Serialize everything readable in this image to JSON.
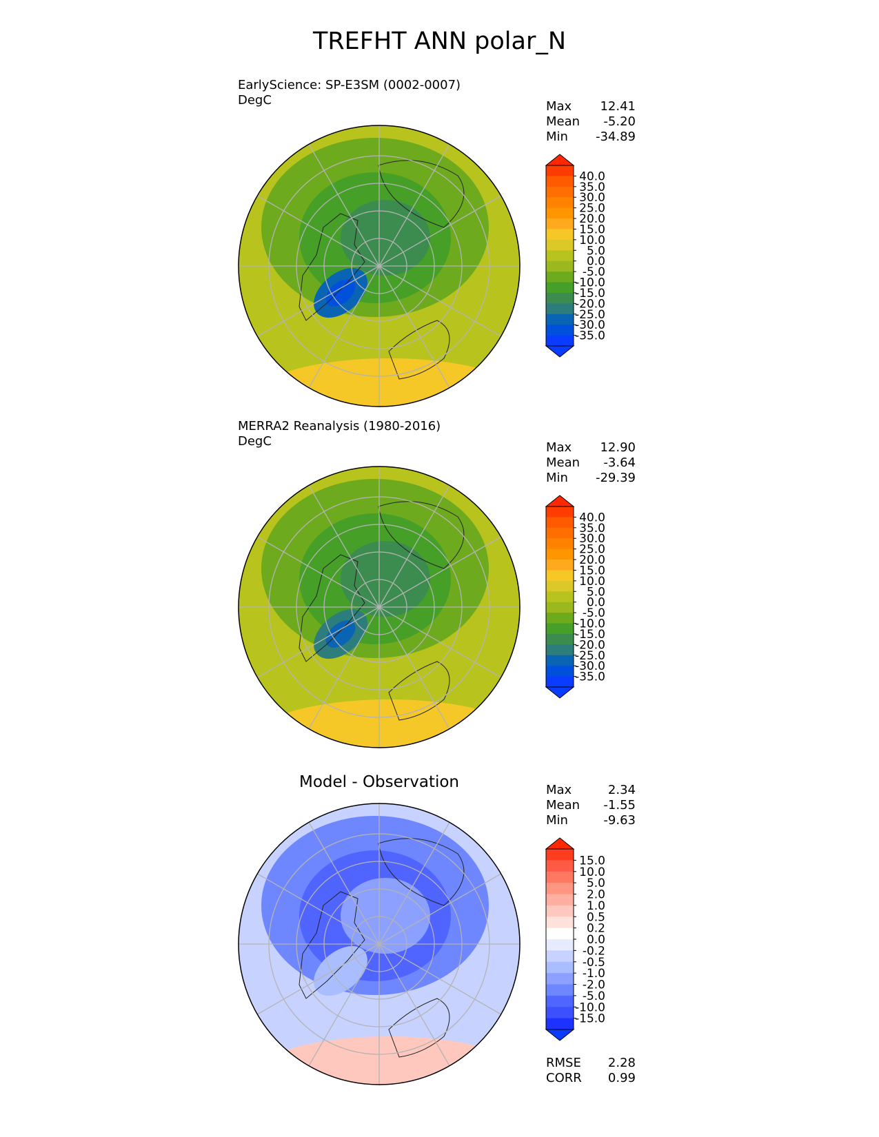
{
  "page_title": "TREFHT ANN polar_N",
  "panels": [
    {
      "subtitle_line1": "EarlyScience: SP-E3SM (0002-0007)",
      "subtitle_line2": "DegC",
      "stats": {
        "max_label": "Max",
        "max": "12.41",
        "mean_label": "Mean",
        "mean": "-5.20",
        "min_label": "Min",
        "min": "-34.89"
      },
      "colorbar": {
        "ticks": [
          "40.0",
          "35.0",
          "30.0",
          "25.0",
          "20.0",
          "15.0",
          "10.0",
          "5.0",
          "0.0",
          "-5.0",
          "-10.0",
          "-15.0",
          "-20.0",
          "-25.0",
          "-30.0",
          "-35.0"
        ],
        "colors": [
          "#ff3c00",
          "#ff5a00",
          "#ff6e00",
          "#ff8200",
          "#ff9600",
          "#ffaa1e",
          "#f5c828",
          "#dcc828",
          "#b9c31e",
          "#9bb91e",
          "#6eaa1e",
          "#46a028",
          "#3c8c50",
          "#2d7d7d",
          "#0a64b4",
          "#0050dc",
          "#0a3cff"
        ],
        "top_color": "#ff2800",
        "bottom_color": "#0a3cff"
      },
      "map": {
        "ocean_color": "#b9c31e",
        "cold_colors": [
          "#6eaa1e",
          "#46a028",
          "#3c8c50",
          "#0a64b4",
          "#0050dc"
        ],
        "warm_color": "#f5c828"
      }
    },
    {
      "subtitle_line1": "MERRA2 Reanalysis (1980-2016)",
      "subtitle_line2": "DegC",
      "stats": {
        "max_label": "Max",
        "max": "12.90",
        "mean_label": "Mean",
        "mean": "-3.64",
        "min_label": "Min",
        "min": "-29.39"
      },
      "colorbar": {
        "ticks": [
          "40.0",
          "35.0",
          "30.0",
          "25.0",
          "20.0",
          "15.0",
          "10.0",
          "5.0",
          "0.0",
          "-5.0",
          "-10.0",
          "-15.0",
          "-20.0",
          "-25.0",
          "-30.0",
          "-35.0"
        ],
        "colors": [
          "#ff3c00",
          "#ff5a00",
          "#ff6e00",
          "#ff8200",
          "#ff9600",
          "#ffaa1e",
          "#f5c828",
          "#dcc828",
          "#b9c31e",
          "#9bb91e",
          "#6eaa1e",
          "#46a028",
          "#3c8c50",
          "#2d7d7d",
          "#0a64b4",
          "#0050dc",
          "#0a3cff"
        ],
        "top_color": "#ff2800",
        "bottom_color": "#0a3cff"
      },
      "map": {
        "ocean_color": "#b9c31e",
        "cold_colors": [
          "#6eaa1e",
          "#46a028",
          "#3c8c50",
          "#2d7d7d",
          "#0a64b4"
        ],
        "warm_color": "#f5c828"
      }
    },
    {
      "center_title": "Model - Observation",
      "stats": {
        "max_label": "Max",
        "max": "2.34",
        "mean_label": "Mean",
        "mean": "-1.55",
        "min_label": "Min",
        "min": "-9.63"
      },
      "colorbar": {
        "ticks": [
          "15.0",
          "10.0",
          "5.0",
          "2.0",
          "1.0",
          "0.5",
          "0.2",
          "0.0",
          "-0.2",
          "-0.5",
          "-1.0",
          "-2.0",
          "-5.0",
          "-10.0",
          "-15.0"
        ],
        "colors": [
          "#ff3c1e",
          "#ff5a46",
          "#ff785f",
          "#ff9682",
          "#ffafa0",
          "#ffc8be",
          "#ffe1dc",
          "#ffffff",
          "#e6ebff",
          "#c8d2ff",
          "#aabeff",
          "#8ca0ff",
          "#6e87ff",
          "#5064ff",
          "#3c50ff",
          "#1e32ff"
        ],
        "top_color": "#ff2800",
        "bottom_color": "#0a3cff"
      },
      "map": {
        "ocean_color": "#c8d2ff",
        "cold_colors": [
          "#6e87ff",
          "#5064ff",
          "#8ca0ff",
          "#aabeff"
        ],
        "warm_color": "#ffc8be"
      },
      "footer": {
        "rmse_label": "RMSE",
        "rmse": "2.28",
        "corr_label": "CORR",
        "corr": "0.99"
      }
    }
  ],
  "chart_data": [
    {
      "type": "heatmap",
      "projection": "north polar stereographic",
      "title": "EarlyScience: SP-E3SM (0002-0007)",
      "units": "DegC",
      "colorbar_levels": [
        -35,
        -30,
        -25,
        -20,
        -15,
        -10,
        -5,
        0,
        5,
        10,
        15,
        20,
        25,
        30,
        35,
        40
      ],
      "summary": {
        "max": 12.41,
        "mean": -5.2,
        "min": -34.89
      }
    },
    {
      "type": "heatmap",
      "projection": "north polar stereographic",
      "title": "MERRA2 Reanalysis (1980-2016)",
      "units": "DegC",
      "colorbar_levels": [
        -35,
        -30,
        -25,
        -20,
        -15,
        -10,
        -5,
        0,
        5,
        10,
        15,
        20,
        25,
        30,
        35,
        40
      ],
      "summary": {
        "max": 12.9,
        "mean": -3.64,
        "min": -29.39
      }
    },
    {
      "type": "heatmap",
      "projection": "north polar stereographic",
      "title": "Model - Observation",
      "colorbar_levels": [
        -15,
        -10,
        -5,
        -2,
        -1,
        -0.5,
        -0.2,
        0,
        0.2,
        0.5,
        1,
        2,
        5,
        10,
        15
      ],
      "summary": {
        "max": 2.34,
        "mean": -1.55,
        "min": -9.63,
        "rmse": 2.28,
        "corr": 0.99
      }
    }
  ]
}
